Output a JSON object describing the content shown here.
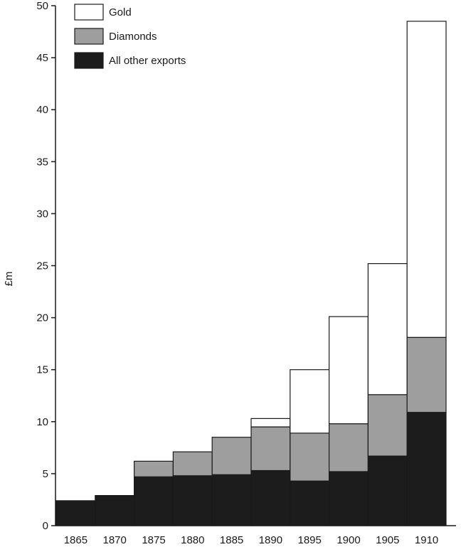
{
  "chart_data": {
    "type": "bar",
    "stacked": true,
    "categories": [
      "1865",
      "1870",
      "1875",
      "1880",
      "1885",
      "1890",
      "1895",
      "1900",
      "1905",
      "1910"
    ],
    "series": [
      {
        "name": "All other exports",
        "color": "#1c1c1c",
        "values": [
          2.4,
          2.9,
          4.7,
          4.8,
          4.9,
          5.3,
          4.3,
          5.2,
          6.7,
          10.9
        ]
      },
      {
        "name": "Diamonds",
        "color": "#9e9e9e",
        "values": [
          0.0,
          0.0,
          1.5,
          2.3,
          3.6,
          4.2,
          4.6,
          4.6,
          5.9,
          7.2
        ]
      },
      {
        "name": "Gold",
        "color": "#ffffff",
        "values": [
          0.0,
          0.0,
          0.0,
          0.0,
          0.0,
          0.8,
          6.1,
          10.3,
          12.6,
          30.4
        ]
      }
    ],
    "legend_order": [
      "Gold",
      "Diamonds",
      "All other exports"
    ],
    "ylabel": "£m",
    "xlabel": "",
    "ylim": [
      0,
      50
    ],
    "yticks": [
      0,
      5,
      10,
      15,
      20,
      25,
      30,
      35,
      40,
      45,
      50
    ],
    "grid": false,
    "legend_position": "top-left"
  }
}
